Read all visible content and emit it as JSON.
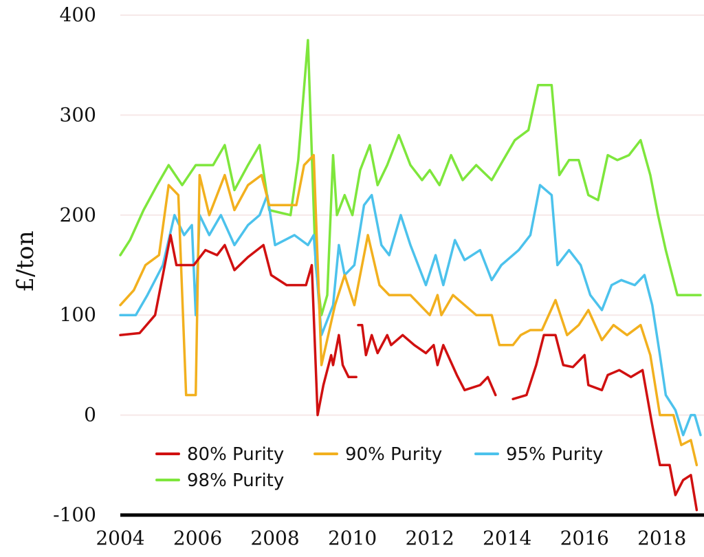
{
  "chart_data": {
    "type": "line",
    "title": "",
    "xlabel": "",
    "ylabel": "£/ton",
    "xlim": [
      2004,
      2019
    ],
    "ylim": [
      -100,
      400
    ],
    "x_ticks": [
      2004,
      2006,
      2008,
      2010,
      2012,
      2014,
      2016,
      2018
    ],
    "x_tick_labels": [
      "2004",
      "2006",
      "2008",
      "2010",
      "2012",
      "2014",
      "2016",
      "2018"
    ],
    "y_ticks": [
      -100,
      0,
      100,
      200,
      300,
      400
    ],
    "y_tick_labels": [
      "-100",
      "0",
      "100",
      "200",
      "300",
      "400"
    ],
    "grid": "horizontal",
    "legend_position": "bottom-left, inside",
    "series": [
      {
        "name": "80% Purity",
        "color": "#d01010",
        "segments": [
          [
            [
              2004.0,
              80
            ],
            [
              2004.5,
              82
            ],
            [
              2004.9,
              100
            ],
            [
              2005.1,
              140
            ],
            [
              2005.3,
              180
            ],
            [
              2005.45,
              150
            ],
            [
              2005.9,
              150
            ],
            [
              2006.2,
              165
            ],
            [
              2006.5,
              160
            ],
            [
              2006.7,
              170
            ],
            [
              2006.95,
              145
            ],
            [
              2007.3,
              158
            ],
            [
              2007.7,
              170
            ],
            [
              2007.9,
              140
            ],
            [
              2008.3,
              130
            ],
            [
              2008.8,
              130
            ],
            [
              2008.95,
              150
            ],
            [
              2009.1,
              0
            ],
            [
              2009.25,
              30
            ],
            [
              2009.45,
              60
            ],
            [
              2009.5,
              50
            ],
            [
              2009.65,
              80
            ],
            [
              2009.75,
              50
            ],
            [
              2009.9,
              38
            ],
            [
              2010.1,
              38
            ]
          ],
          [
            [
              2010.15,
              90
            ],
            [
              2010.25,
              90
            ],
            [
              2010.35,
              60
            ],
            [
              2010.5,
              80
            ],
            [
              2010.65,
              62
            ],
            [
              2010.9,
              80
            ],
            [
              2011.0,
              70
            ],
            [
              2011.3,
              80
            ],
            [
              2011.6,
              70
            ],
            [
              2011.9,
              62
            ],
            [
              2012.1,
              70
            ],
            [
              2012.2,
              50
            ],
            [
              2012.35,
              70
            ],
            [
              2012.7,
              40
            ],
            [
              2012.9,
              25
            ],
            [
              2013.3,
              30
            ],
            [
              2013.5,
              38
            ],
            [
              2013.7,
              20
            ]
          ],
          [
            [
              2014.15,
              16
            ],
            [
              2014.5,
              20
            ],
            [
              2014.75,
              50
            ],
            [
              2014.95,
              80
            ],
            [
              2015.25,
              80
            ],
            [
              2015.45,
              50
            ],
            [
              2015.7,
              48
            ],
            [
              2016.0,
              60
            ],
            [
              2016.1,
              30
            ],
            [
              2016.45,
              25
            ],
            [
              2016.6,
              40
            ],
            [
              2016.9,
              45
            ],
            [
              2017.2,
              38
            ],
            [
              2017.5,
              45
            ],
            [
              2017.75,
              -10
            ],
            [
              2017.95,
              -50
            ],
            [
              2018.2,
              -50
            ],
            [
              2018.35,
              -80
            ],
            [
              2018.55,
              -65
            ],
            [
              2018.75,
              -60
            ],
            [
              2018.9,
              -95
            ]
          ]
        ]
      },
      {
        "name": "90% Purity",
        "color": "#f2b01e",
        "segments": [
          [
            [
              2004.0,
              110
            ],
            [
              2004.35,
              125
            ],
            [
              2004.65,
              150
            ],
            [
              2005.0,
              160
            ],
            [
              2005.25,
              230
            ],
            [
              2005.5,
              220
            ],
            [
              2005.7,
              20
            ],
            [
              2005.95,
              20
            ],
            [
              2006.05,
              240
            ],
            [
              2006.3,
              200
            ],
            [
              2006.7,
              240
            ],
            [
              2006.95,
              205
            ],
            [
              2007.3,
              230
            ],
            [
              2007.65,
              240
            ],
            [
              2007.85,
              210
            ],
            [
              2008.55,
              210
            ],
            [
              2008.75,
              250
            ],
            [
              2009.0,
              260
            ],
            [
              2009.2,
              50
            ],
            [
              2009.55,
              110
            ],
            [
              2009.8,
              140
            ],
            [
              2010.05,
              110
            ],
            [
              2010.4,
              180
            ],
            [
              2010.7,
              130
            ],
            [
              2010.95,
              120
            ],
            [
              2011.5,
              120
            ],
            [
              2012.0,
              100
            ],
            [
              2012.2,
              120
            ],
            [
              2012.3,
              100
            ],
            [
              2012.6,
              120
            ],
            [
              2012.9,
              110
            ],
            [
              2013.2,
              100
            ],
            [
              2013.6,
              100
            ],
            [
              2013.8,
              70
            ],
            [
              2014.15,
              70
            ],
            [
              2014.35,
              80
            ],
            [
              2014.6,
              85
            ],
            [
              2014.9,
              85
            ],
            [
              2015.25,
              115
            ],
            [
              2015.55,
              80
            ],
            [
              2015.85,
              90
            ],
            [
              2016.1,
              105
            ],
            [
              2016.45,
              75
            ],
            [
              2016.75,
              90
            ],
            [
              2017.1,
              80
            ],
            [
              2017.45,
              90
            ],
            [
              2017.7,
              60
            ],
            [
              2017.95,
              0
            ],
            [
              2018.3,
              0
            ],
            [
              2018.5,
              -30
            ],
            [
              2018.75,
              -25
            ],
            [
              2018.9,
              -50
            ]
          ]
        ]
      },
      {
        "name": "95% Purity",
        "color": "#4cc2ec",
        "segments": [
          [
            [
              2004.0,
              100
            ],
            [
              2004.4,
              100
            ],
            [
              2004.7,
              120
            ],
            [
              2005.1,
              150
            ],
            [
              2005.4,
              200
            ],
            [
              2005.65,
              180
            ],
            [
              2005.85,
              190
            ],
            [
              2005.95,
              100
            ],
            [
              2006.05,
              200
            ],
            [
              2006.3,
              180
            ],
            [
              2006.6,
              200
            ],
            [
              2006.95,
              170
            ],
            [
              2007.3,
              190
            ],
            [
              2007.6,
              200
            ],
            [
              2007.8,
              220
            ],
            [
              2008.0,
              170
            ],
            [
              2008.5,
              180
            ],
            [
              2008.85,
              170
            ],
            [
              2009.0,
              180
            ],
            [
              2009.2,
              80
            ],
            [
              2009.5,
              110
            ],
            [
              2009.65,
              170
            ],
            [
              2009.8,
              140
            ],
            [
              2010.05,
              150
            ],
            [
              2010.3,
              210
            ],
            [
              2010.5,
              220
            ],
            [
              2010.75,
              170
            ],
            [
              2010.95,
              160
            ],
            [
              2011.25,
              200
            ],
            [
              2011.5,
              170
            ],
            [
              2011.9,
              130
            ],
            [
              2012.15,
              160
            ],
            [
              2012.35,
              130
            ],
            [
              2012.65,
              175
            ],
            [
              2012.9,
              155
            ],
            [
              2013.3,
              165
            ],
            [
              2013.6,
              135
            ],
            [
              2013.85,
              150
            ],
            [
              2014.3,
              165
            ],
            [
              2014.6,
              180
            ],
            [
              2014.85,
              230
            ],
            [
              2015.15,
              220
            ],
            [
              2015.3,
              150
            ],
            [
              2015.6,
              165
            ],
            [
              2015.9,
              150
            ],
            [
              2016.15,
              120
            ],
            [
              2016.45,
              105
            ],
            [
              2016.7,
              130
            ],
            [
              2016.95,
              135
            ],
            [
              2017.3,
              130
            ],
            [
              2017.55,
              140
            ],
            [
              2017.75,
              110
            ],
            [
              2017.95,
              60
            ],
            [
              2018.1,
              20
            ],
            [
              2018.35,
              5
            ],
            [
              2018.55,
              -20
            ],
            [
              2018.75,
              0
            ],
            [
              2018.85,
              0
            ],
            [
              2019.0,
              -20
            ]
          ]
        ]
      },
      {
        "name": "98% Purity",
        "color": "#7ee63c",
        "segments": [
          [
            [
              2004.0,
              160
            ],
            [
              2004.25,
              175
            ],
            [
              2004.6,
              205
            ],
            [
              2004.95,
              230
            ],
            [
              2005.25,
              250
            ],
            [
              2005.6,
              230
            ],
            [
              2005.95,
              250
            ],
            [
              2006.4,
              250
            ],
            [
              2006.7,
              270
            ],
            [
              2006.95,
              225
            ],
            [
              2007.3,
              250
            ],
            [
              2007.6,
              270
            ],
            [
              2007.85,
              205
            ],
            [
              2008.4,
              200
            ],
            [
              2008.6,
              255
            ],
            [
              2008.85,
              375
            ],
            [
              2009.05,
              150
            ],
            [
              2009.2,
              100
            ],
            [
              2009.35,
              120
            ],
            [
              2009.5,
              260
            ],
            [
              2009.6,
              200
            ],
            [
              2009.8,
              220
            ],
            [
              2010.0,
              200
            ],
            [
              2010.2,
              245
            ],
            [
              2010.45,
              270
            ],
            [
              2010.65,
              230
            ],
            [
              2010.9,
              250
            ],
            [
              2011.2,
              280
            ],
            [
              2011.5,
              250
            ],
            [
              2011.8,
              235
            ],
            [
              2012.0,
              245
            ],
            [
              2012.25,
              230
            ],
            [
              2012.55,
              260
            ],
            [
              2012.85,
              235
            ],
            [
              2013.2,
              250
            ],
            [
              2013.6,
              235
            ],
            [
              2013.9,
              255
            ],
            [
              2014.2,
              275
            ],
            [
              2014.55,
              285
            ],
            [
              2014.8,
              330
            ],
            [
              2015.15,
              330
            ],
            [
              2015.35,
              240
            ],
            [
              2015.6,
              255
            ],
            [
              2015.85,
              255
            ],
            [
              2016.1,
              220
            ],
            [
              2016.35,
              215
            ],
            [
              2016.6,
              260
            ],
            [
              2016.85,
              255
            ],
            [
              2017.15,
              260
            ],
            [
              2017.45,
              275
            ],
            [
              2017.7,
              240
            ],
            [
              2017.9,
              200
            ],
            [
              2018.1,
              165
            ],
            [
              2018.4,
              120
            ],
            [
              2018.75,
              120
            ],
            [
              2019.0,
              120
            ]
          ]
        ]
      }
    ]
  }
}
